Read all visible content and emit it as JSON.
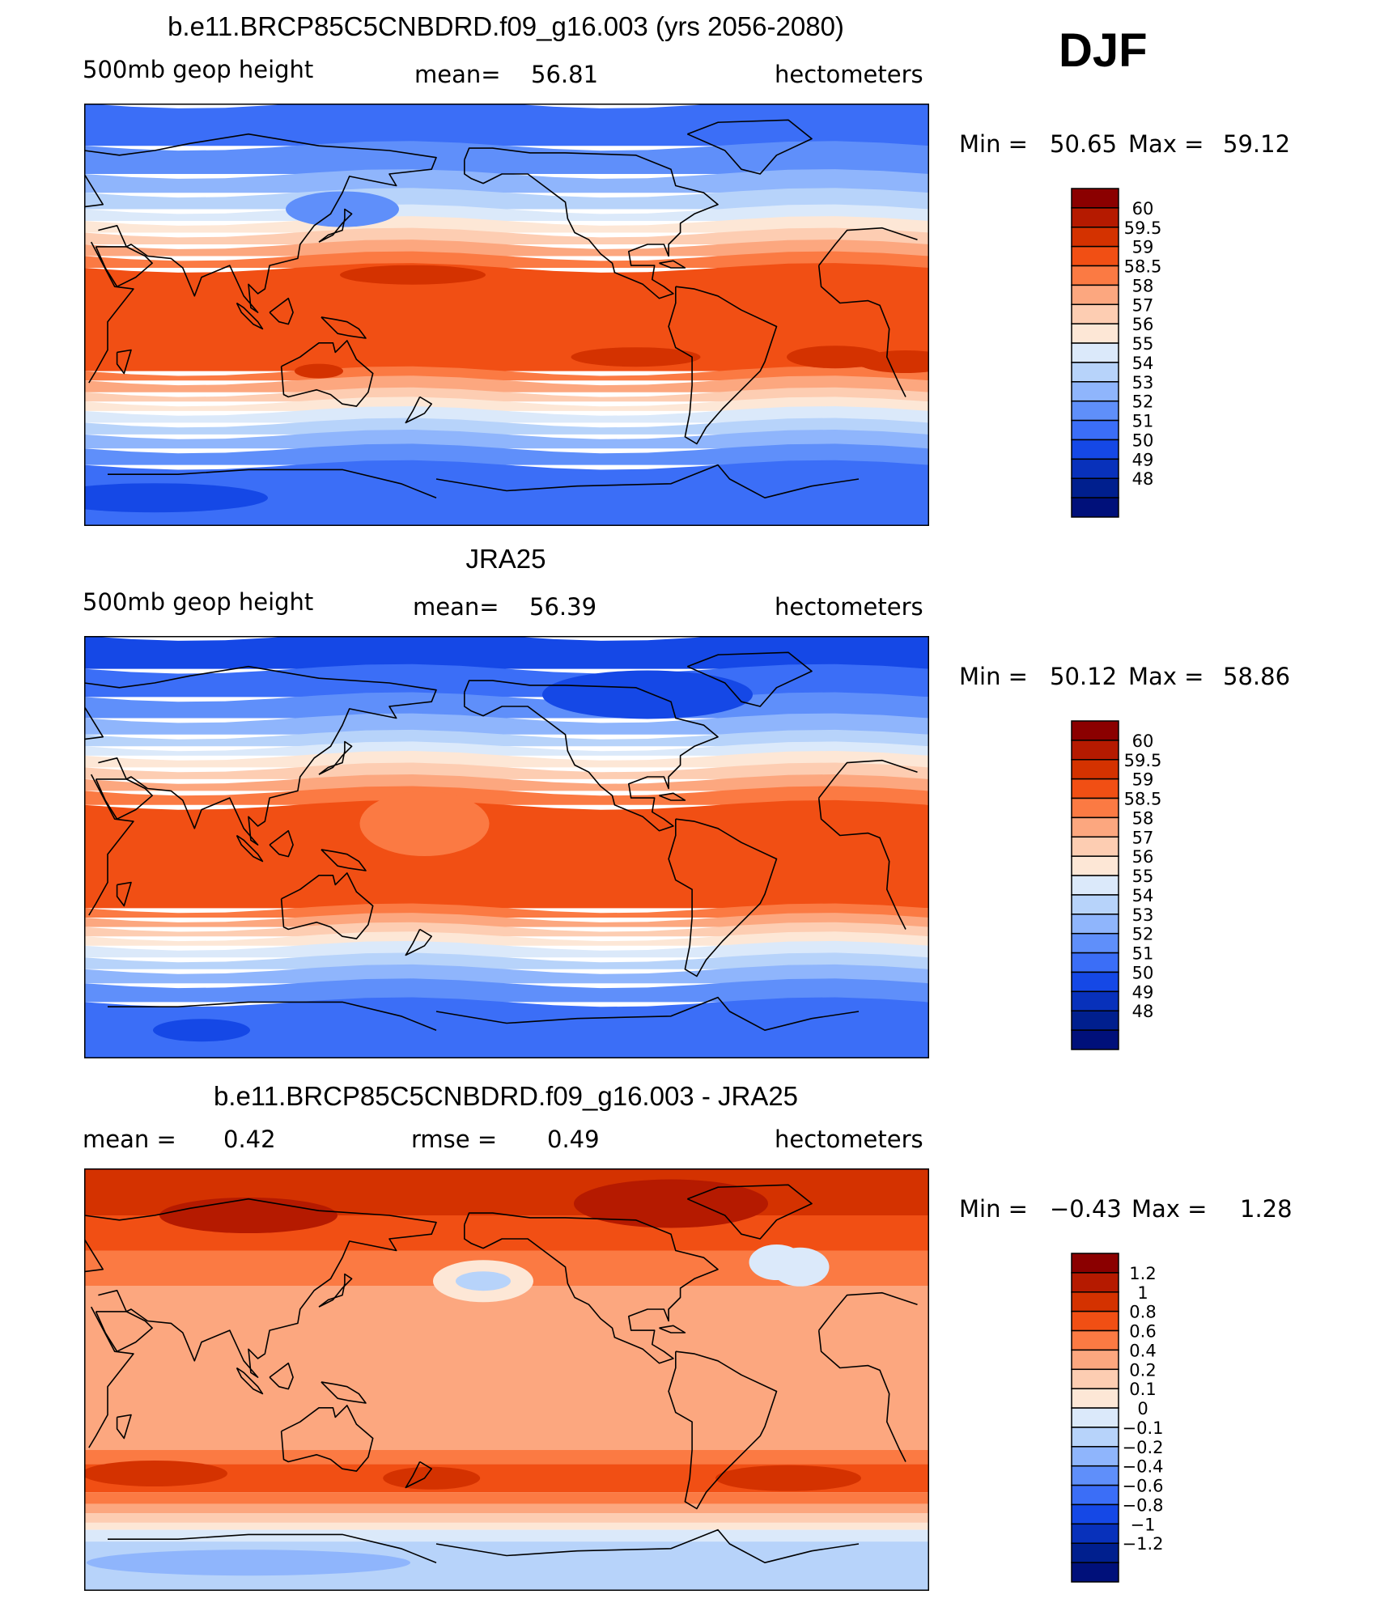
{
  "season": "DJF",
  "panels": [
    {
      "id": "model",
      "title": "b.e11.BRCP85C5CNBDRD.f09_g16.003 (yrs 2056-2080)",
      "left_label": "500mb geop height",
      "center_label": "mean=",
      "center_value": "56.81",
      "units": "hectometers",
      "min_label": "Min =",
      "min_value": "50.65",
      "max_label": "Max =",
      "max_value": "59.12",
      "colorbar_labels": [
        "60",
        "59.5",
        "59",
        "58.5",
        "58",
        "57",
        "56",
        "55",
        "54",
        "53",
        "52",
        "51",
        "50",
        "49",
        "48"
      ],
      "colorbar_colors": [
        "#8b0000",
        "#b51a00",
        "#d43200",
        "#f14f14",
        "#fb7a43",
        "#fca77f",
        "#fdcdb2",
        "#fde7d6",
        "#dbe9fa",
        "#b7d3fa",
        "#8fb5fc",
        "#5f8ffa",
        "#3b6ef7",
        "#1548e6",
        "#0831bb",
        "#001f8e",
        "#00107a"
      ],
      "field": "absolute"
    },
    {
      "id": "obs",
      "title": "JRA25",
      "left_label": "500mb geop height",
      "center_label": "mean=",
      "center_value": "56.39",
      "units": "hectometers",
      "min_label": "Min =",
      "min_value": "50.12",
      "max_label": "Max =",
      "max_value": "58.86",
      "colorbar_labels": [
        "60",
        "59.5",
        "59",
        "58.5",
        "58",
        "57",
        "56",
        "55",
        "54",
        "53",
        "52",
        "51",
        "50",
        "49",
        "48"
      ],
      "colorbar_colors": [
        "#8b0000",
        "#b51a00",
        "#d43200",
        "#f14f14",
        "#fb7a43",
        "#fca77f",
        "#fdcdb2",
        "#fde7d6",
        "#dbe9fa",
        "#b7d3fa",
        "#8fb5fc",
        "#5f8ffa",
        "#3b6ef7",
        "#1548e6",
        "#0831bb",
        "#001f8e",
        "#00107a"
      ],
      "field": "absolute"
    },
    {
      "id": "diff",
      "title": "b.e11.BRCP85C5CNBDRD.f09_g16.003 - JRA25",
      "left_label": "mean =",
      "left_value": "0.42",
      "center_label": "rmse =",
      "center_value": "0.49",
      "units": "hectometers",
      "min_label": "Min =",
      "min_value": "−0.43",
      "max_label": "Max =",
      "max_value": "1.28",
      "colorbar_labels": [
        "1.2",
        "1",
        "0.8",
        "0.6",
        "0.4",
        "0.2",
        "0.1",
        "0",
        "−0.1",
        "−0.2",
        "−0.4",
        "−0.6",
        "−0.8",
        "−1",
        "−1.2"
      ],
      "colorbar_colors": [
        "#8b0000",
        "#b51a00",
        "#d43200",
        "#f14f14",
        "#fb7a43",
        "#fca77f",
        "#fdcdb2",
        "#fde7d6",
        "#dbe9fa",
        "#b7d3fa",
        "#8fb5fc",
        "#5f8ffa",
        "#3b6ef7",
        "#1548e6",
        "#0831bb",
        "#001f8e",
        "#00107a"
      ],
      "field": "difference"
    }
  ]
}
